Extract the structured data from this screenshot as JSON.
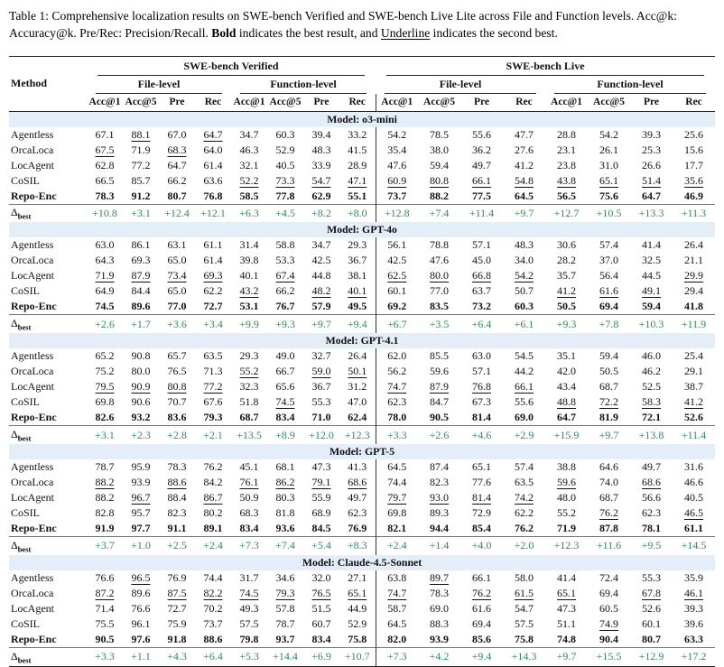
{
  "caption": {
    "label": "Table 1: ",
    "body1": "Comprehensive localization results on SWE-bench Verified and SWE-bench Live Lite across File and Function levels. Acc@k: Accuracy@k. Pre/Rec: Precision/Recall. ",
    "bold_word": "Bold",
    "body2": " indicates the best result, and ",
    "underline_word": "Underline",
    "body3": " indicates the second best."
  },
  "colors": {
    "model_band_blue": "#e4eef8",
    "delta_green": "#2e8b5f",
    "rule_dark": "#222222"
  },
  "table": {
    "method_header": "Method",
    "bench_groups": [
      "SWE-bench Verified",
      "SWE-bench Live"
    ],
    "level_groups": [
      "File-level",
      "Function-level"
    ],
    "metrics": [
      "Acc@1",
      "Acc@5",
      "Pre",
      "Rec"
    ],
    "delta_label": "Δ",
    "delta_sub": "best",
    "sections": [
      {
        "model": "Model: o3-mini",
        "rows": [
          {
            "method": "Agentless",
            "values": [
              "67.1",
              "88.1",
              "67.0",
              "64.7",
              "34.7",
              "60.3",
              "39.4",
              "33.2",
              "54.2",
              "78.5",
              "55.6",
              "47.7",
              "28.8",
              "54.2",
              "39.3",
              "25.6"
            ],
            "u": [
              1,
              3
            ],
            "bold": false
          },
          {
            "method": "OrcaLoca",
            "values": [
              "67.5",
              "71.9",
              "68.3",
              "64.0",
              "46.3",
              "52.9",
              "48.3",
              "41.5",
              "35.4",
              "38.0",
              "36.2",
              "27.6",
              "23.1",
              "26.1",
              "25.3",
              "15.6"
            ],
            "u": [
              0,
              2
            ],
            "bold": false
          },
          {
            "method": "LocAgent",
            "values": [
              "62.8",
              "77.2",
              "64.7",
              "61.4",
              "32.1",
              "40.5",
              "33.9",
              "28.9",
              "47.6",
              "59.4",
              "49.7",
              "41.2",
              "23.8",
              "31.0",
              "26.6",
              "17.7"
            ],
            "u": [],
            "bold": false
          },
          {
            "method": "CoSIL",
            "values": [
              "66.5",
              "85.7",
              "66.2",
              "63.6",
              "52.2",
              "73.3",
              "54.7",
              "47.1",
              "60.9",
              "80.8",
              "66.1",
              "54.8",
              "43.8",
              "65.1",
              "51.4",
              "35.6"
            ],
            "u": [
              4,
              5,
              6,
              7,
              8,
              9,
              10,
              11,
              12,
              13,
              14,
              15
            ],
            "bold": false
          },
          {
            "method": "Repo-Enc",
            "values": [
              "78.3",
              "91.2",
              "80.7",
              "76.8",
              "58.5",
              "77.8",
              "62.9",
              "55.1",
              "73.7",
              "88.2",
              "77.5",
              "64.5",
              "56.5",
              "75.6",
              "64.7",
              "46.9"
            ],
            "u": [],
            "bold": true
          }
        ],
        "delta": [
          "+10.8",
          "+3.1",
          "+12.4",
          "+12.1",
          "+6.3",
          "+4.5",
          "+8.2",
          "+8.0",
          "+12.8",
          "+7.4",
          "+11.4",
          "+9.7",
          "+12.7",
          "+10.5",
          "+13.3",
          "+11.3"
        ]
      },
      {
        "model": "Model: GPT-4o",
        "rows": [
          {
            "method": "Agentless",
            "values": [
              "63.0",
              "86.1",
              "63.1",
              "61.1",
              "31.4",
              "58.8",
              "34.7",
              "29.3",
              "56.1",
              "78.8",
              "57.1",
              "48.3",
              "30.6",
              "57.4",
              "41.4",
              "26.4"
            ],
            "u": [],
            "bold": false
          },
          {
            "method": "OrcaLoca",
            "values": [
              "64.3",
              "69.3",
              "65.0",
              "61.4",
              "39.8",
              "53.3",
              "42.5",
              "36.7",
              "42.5",
              "47.6",
              "45.0",
              "34.0",
              "28.2",
              "37.0",
              "32.5",
              "21.1"
            ],
            "u": [],
            "bold": false
          },
          {
            "method": "LocAgent",
            "values": [
              "71.9",
              "87.9",
              "73.4",
              "69.3",
              "40.1",
              "67.4",
              "44.8",
              "38.1",
              "62.5",
              "80.0",
              "66.8",
              "54.2",
              "35.7",
              "56.4",
              "44.5",
              "29.9"
            ],
            "u": [
              0,
              1,
              2,
              3,
              5,
              8,
              9,
              10,
              11,
              15
            ],
            "bold": false
          },
          {
            "method": "CoSIL",
            "values": [
              "64.9",
              "84.4",
              "65.0",
              "62.2",
              "43.2",
              "66.2",
              "48.2",
              "40.1",
              "60.1",
              "77.0",
              "63.7",
              "50.7",
              "41.2",
              "61.6",
              "49.1",
              "29.4"
            ],
            "u": [
              4,
              6,
              7,
              12,
              13,
              14
            ],
            "bold": false
          },
          {
            "method": "Repo-Enc",
            "values": [
              "74.5",
              "89.6",
              "77.0",
              "72.7",
              "53.1",
              "76.7",
              "57.9",
              "49.5",
              "69.2",
              "83.5",
              "73.2",
              "60.3",
              "50.5",
              "69.4",
              "59.4",
              "41.8"
            ],
            "u": [],
            "bold": true
          }
        ],
        "delta": [
          "+2.6",
          "+1.7",
          "+3.6",
          "+3.4",
          "+9.9",
          "+9.3",
          "+9.7",
          "+9.4",
          "+6.7",
          "+3.5",
          "+6.4",
          "+6.1",
          "+9.3",
          "+7.8",
          "+10.3",
          "+11.9"
        ]
      },
      {
        "model": "Model: GPT-4.1",
        "rows": [
          {
            "method": "Agentless",
            "values": [
              "65.2",
              "90.8",
              "65.7",
              "63.5",
              "29.3",
              "49.0",
              "32.7",
              "26.4",
              "62.0",
              "85.5",
              "63.0",
              "54.5",
              "35.1",
              "59.4",
              "46.0",
              "25.4"
            ],
            "u": [],
            "bold": false
          },
          {
            "method": "OrcaLoca",
            "values": [
              "75.2",
              "80.0",
              "76.5",
              "71.3",
              "55.2",
              "66.7",
              "59.0",
              "50.1",
              "56.2",
              "59.6",
              "57.1",
              "44.2",
              "42.0",
              "50.5",
              "46.2",
              "29.1"
            ],
            "u": [
              4,
              6,
              7
            ],
            "bold": false
          },
          {
            "method": "LocAgent",
            "values": [
              "79.5",
              "90.9",
              "80.8",
              "77.2",
              "32.3",
              "65.6",
              "36.7",
              "31.2",
              "74.7",
              "87.9",
              "76.8",
              "66.1",
              "43.4",
              "68.7",
              "52.5",
              "38.7"
            ],
            "u": [
              0,
              1,
              2,
              3,
              8,
              9,
              10,
              11
            ],
            "bold": false
          },
          {
            "method": "CoSIL",
            "values": [
              "69.8",
              "90.6",
              "70.7",
              "67.6",
              "51.8",
              "74.5",
              "55.3",
              "47.0",
              "62.3",
              "84.7",
              "67.3",
              "55.6",
              "48.8",
              "72.2",
              "58.3",
              "41.2"
            ],
            "u": [
              5,
              12,
              13,
              14,
              15
            ],
            "bold": false
          },
          {
            "method": "Repo-Enc",
            "values": [
              "82.6",
              "93.2",
              "83.6",
              "79.3",
              "68.7",
              "83.4",
              "71.0",
              "62.4",
              "78.0",
              "90.5",
              "81.4",
              "69.0",
              "64.7",
              "81.9",
              "72.1",
              "52.6"
            ],
            "u": [],
            "bold": true
          }
        ],
        "delta": [
          "+3.1",
          "+2.3",
          "+2.8",
          "+2.1",
          "+13.5",
          "+8.9",
          "+12.0",
          "+12.3",
          "+3.3",
          "+2.6",
          "+4.6",
          "+2.9",
          "+15.9",
          "+9.7",
          "+13.8",
          "+11.4"
        ]
      },
      {
        "model": "Model: GPT-5",
        "rows": [
          {
            "method": "Agentless",
            "values": [
              "78.7",
              "95.9",
              "78.3",
              "76.2",
              "45.1",
              "68.1",
              "47.3",
              "41.3",
              "64.5",
              "87.4",
              "65.1",
              "57.4",
              "38.8",
              "64.6",
              "49.7",
              "31.6"
            ],
            "u": [],
            "bold": false
          },
          {
            "method": "OrcaLoca",
            "values": [
              "88.2",
              "93.9",
              "88.6",
              "84.2",
              "76.1",
              "86.2",
              "79.1",
              "68.6",
              "74.4",
              "82.3",
              "77.6",
              "63.5",
              "59.6",
              "74.0",
              "68.6",
              "46.6"
            ],
            "u": [
              0,
              2,
              4,
              5,
              6,
              7,
              12,
              14
            ],
            "bold": false
          },
          {
            "method": "LocAgent",
            "values": [
              "88.2",
              "96.7",
              "88.4",
              "86.7",
              "50.9",
              "80.3",
              "55.9",
              "49.7",
              "79.7",
              "93.0",
              "81.4",
              "74.2",
              "48.0",
              "68.7",
              "56.6",
              "40.5"
            ],
            "u": [
              1,
              3,
              8,
              9,
              10,
              11
            ],
            "bold": false
          },
          {
            "method": "CoSIL",
            "values": [
              "82.8",
              "95.7",
              "82.3",
              "80.2",
              "68.3",
              "81.8",
              "68.9",
              "62.3",
              "69.8",
              "89.3",
              "72.9",
              "62.2",
              "55.2",
              "76.2",
              "62.3",
              "46.5"
            ],
            "u": [
              13,
              15
            ],
            "bold": false
          },
          {
            "method": "Repo-Enc",
            "values": [
              "91.9",
              "97.7",
              "91.1",
              "89.1",
              "83.4",
              "93.6",
              "84.5",
              "76.9",
              "82.1",
              "94.4",
              "85.4",
              "76.2",
              "71.9",
              "87.8",
              "78.1",
              "61.1"
            ],
            "u": [],
            "bold": true
          }
        ],
        "delta": [
          "+3.7",
          "+1.0",
          "+2.5",
          "+2.4",
          "+7.3",
          "+7.4",
          "+5.4",
          "+8.3",
          "+2.4",
          "+1.4",
          "+4.0",
          "+2.0",
          "+12.3",
          "+11.6",
          "+9.5",
          "+14.5"
        ]
      },
      {
        "model": "Model: Claude-4.5-Sonnet",
        "rows": [
          {
            "method": "Agentless",
            "values": [
              "76.6",
              "96.5",
              "76.9",
              "74.4",
              "31.7",
              "34.6",
              "32.0",
              "27.1",
              "63.8",
              "89.7",
              "66.1",
              "58.0",
              "41.4",
              "72.4",
              "55.3",
              "35.9"
            ],
            "u": [
              1,
              9
            ],
            "bold": false
          },
          {
            "method": "OrcaLoca",
            "values": [
              "87.2",
              "89.6",
              "87.5",
              "82.2",
              "74.5",
              "79.3",
              "76.5",
              "65.1",
              "74.7",
              "78.3",
              "76.2",
              "61.5",
              "65.1",
              "69.4",
              "67.8",
              "46.1"
            ],
            "u": [
              0,
              2,
              3,
              4,
              5,
              6,
              7,
              8,
              10,
              11,
              12,
              14,
              15
            ],
            "bold": false
          },
          {
            "method": "LocAgent",
            "values": [
              "71.4",
              "76.6",
              "72.7",
              "70.2",
              "49.3",
              "57.8",
              "51.5",
              "44.9",
              "58.7",
              "69.0",
              "61.6",
              "54.7",
              "47.3",
              "60.5",
              "52.6",
              "39.3"
            ],
            "u": [],
            "bold": false
          },
          {
            "method": "CoSIL",
            "values": [
              "75.5",
              "96.1",
              "75.9",
              "73.7",
              "57.5",
              "78.7",
              "60.7",
              "52.9",
              "64.5",
              "88.3",
              "69.4",
              "57.5",
              "51.1",
              "74.9",
              "60.1",
              "39.6"
            ],
            "u": [
              13
            ],
            "bold": false
          },
          {
            "method": "Repo-Enc",
            "values": [
              "90.5",
              "97.6",
              "91.8",
              "88.6",
              "79.8",
              "93.7",
              "83.4",
              "75.8",
              "82.0",
              "93.9",
              "85.6",
              "75.8",
              "74.8",
              "90.4",
              "80.7",
              "63.3"
            ],
            "u": [],
            "bold": true
          }
        ],
        "delta": [
          "+3.3",
          "+1.1",
          "+4.3",
          "+6.4",
          "+5.3",
          "+14.4",
          "+6.9",
          "+10.7",
          "+7.3",
          "+4.2",
          "+9.4",
          "+14.3",
          "+9.7",
          "+15.5",
          "+12.9",
          "+17.2"
        ]
      }
    ]
  }
}
